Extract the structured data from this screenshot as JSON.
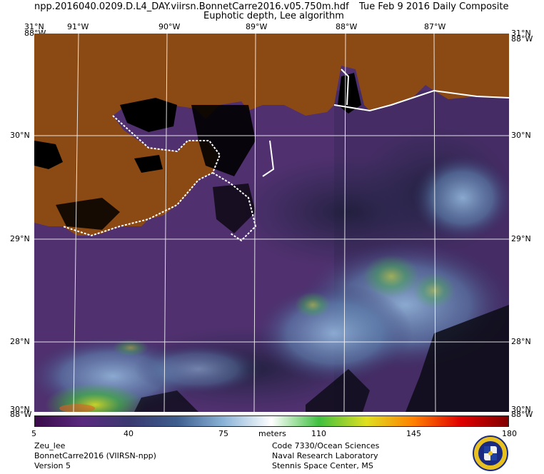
{
  "header": {
    "filename": "npp.2016040.0209.D.L4_DAY.viirsn.BonnetCarre2016.v05.750m.hdf",
    "date": "Tue Feb  9 2016 Daily Composite",
    "product": "Euphotic depth, Lee algorithm"
  },
  "map": {
    "top_left_corner": "31°N",
    "top_left_corner_lon": "88°W",
    "top_right_corner": "31°N",
    "top_right_corner_lon": "88°W",
    "bottom_left_corner": "30°N",
    "bottom_left_corner_lon": "88°W",
    "bottom_right_corner": "30°N",
    "bottom_right_corner_lon": "88°W",
    "longitudes": [
      "91°W",
      "90°W",
      "89°W",
      "88°W",
      "87°W"
    ],
    "latitudes_left": [
      "30°N",
      "29°N",
      "28°N"
    ],
    "latitudes_right": [
      "30°N",
      "29°N",
      "28°N"
    ],
    "colors": {
      "land": "#8b4a14",
      "no_data": "#000000",
      "coast": "#ffffff",
      "grid": "#ffffff"
    }
  },
  "colorbar": {
    "ticks": [
      "5",
      "40",
      "75",
      "110",
      "145",
      "180"
    ],
    "units": "meters",
    "stops": [
      "#3a0a4a",
      "#5a2a80",
      "#3a3a70",
      "#3e5e8e",
      "#8cb4d8",
      "#ffffff",
      "#40c040",
      "#e0e020",
      "#ff8000",
      "#e00000",
      "#800000"
    ]
  },
  "footer": {
    "left": [
      "Zeu_lee",
      "BonnetCarre2016 (VIIRSN-npp)",
      "Version 5"
    ],
    "right": [
      "Code 7330/Ocean Sciences",
      "Naval Research Laboratory",
      "Stennis Space Center, MS"
    ]
  }
}
